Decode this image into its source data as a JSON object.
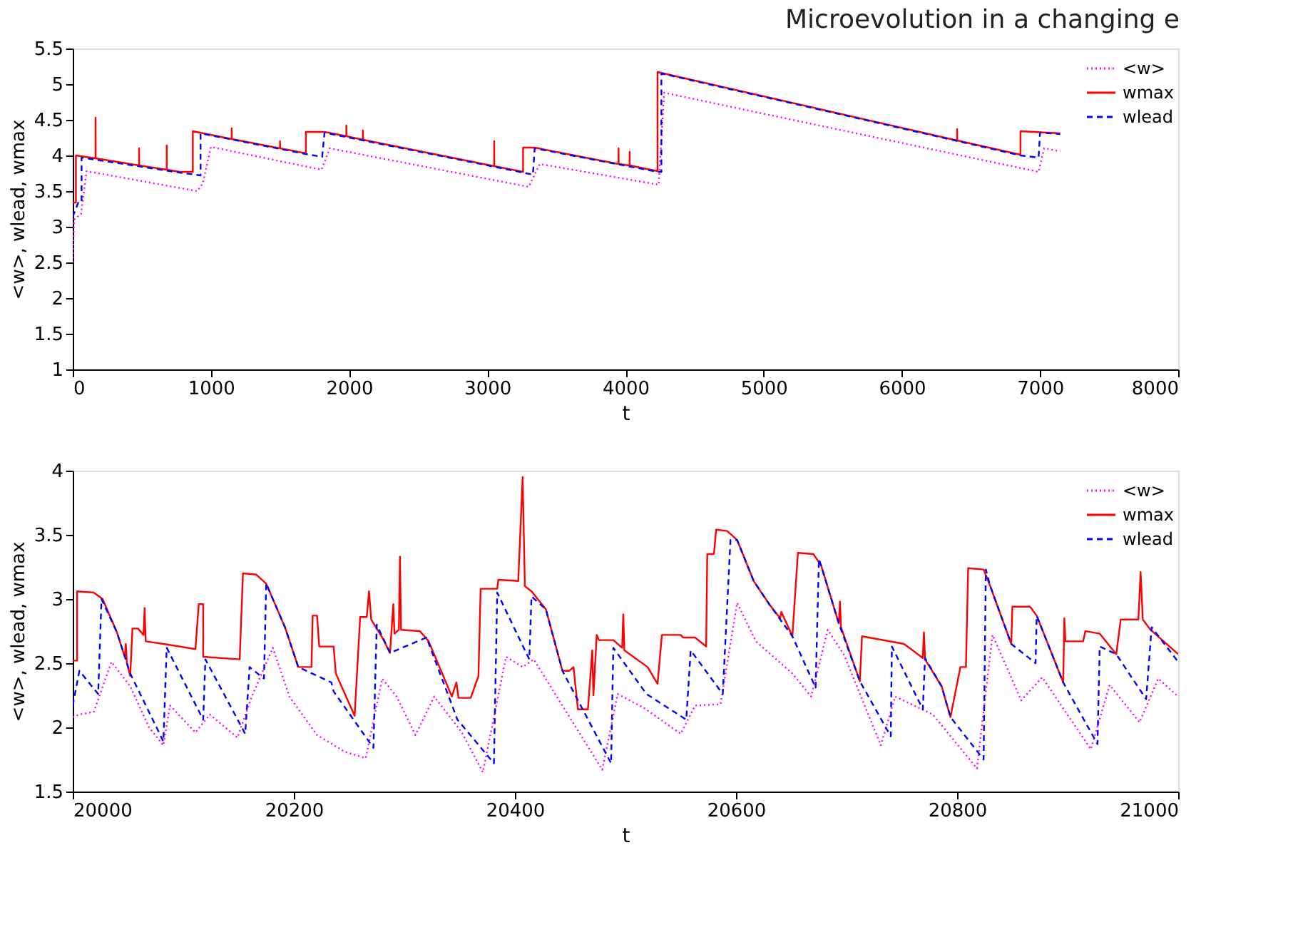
{
  "chart_data": [
    {
      "type": "line",
      "title": "Microevolution in a changing e",
      "xlabel": "t",
      "ylabel": "<w>, wlead, wmax",
      "xlim": [
        0,
        8000
      ],
      "xticks": [
        0,
        1000,
        2000,
        3000,
        4000,
        5000,
        6000,
        7000,
        8000
      ],
      "ylim": [
        1,
        5.5
      ],
      "yticks": [
        1,
        1.5,
        2,
        2.5,
        3,
        3.5,
        4,
        4.5,
        5,
        5.5
      ],
      "grid": false,
      "legend": "top right",
      "series": [
        {
          "name": "<w>",
          "color": "#ff00ff",
          "line_style": "dotted",
          "x": [
            0,
            10,
            60,
            100,
            900,
            940,
            1000,
            1800,
            1860,
            3300,
            3380,
            4240,
            4280,
            6990,
            7030,
            7146
          ],
          "values": [
            2.5,
            3.1,
            3.18,
            3.78,
            3.5,
            3.6,
            4.12,
            3.8,
            4.1,
            3.56,
            3.88,
            3.59,
            4.88,
            3.77,
            4.1,
            4.06
          ]
        },
        {
          "name": "wmax",
          "color": "#ff0000",
          "line_style": "solid",
          "x": [
            0,
            23,
            23,
            165,
            165,
            166,
            480,
            480,
            481,
            680,
            680,
            681,
            774,
            869,
            869,
            1150,
            1150,
            1151,
            1500,
            1500,
            1501,
            1687,
            1687,
            1822,
            1980,
            1980,
            1981,
            2100,
            2100,
            2101,
            3050,
            3050,
            3051,
            3259,
            3259,
            3343,
            3950,
            3950,
            3951,
            4030,
            4030,
            4031,
            4232,
            4232,
            6400,
            6400,
            6401,
            6859,
            6859,
            7146
          ],
          "values": [
            3.34,
            3.34,
            4.0,
            3.96,
            4.53,
            3.96,
            3.86,
            4.1,
            3.86,
            3.8,
            4.14,
            3.8,
            3.77,
            3.77,
            4.34,
            4.23,
            4.38,
            4.23,
            4.1,
            4.2,
            4.1,
            4.03,
            4.33,
            4.33,
            4.27,
            4.42,
            4.27,
            4.22,
            4.35,
            4.22,
            3.85,
            4.2,
            3.85,
            3.77,
            4.11,
            4.11,
            3.88,
            4.1,
            3.88,
            3.86,
            4.05,
            3.86,
            3.78,
            5.17,
            4.21,
            4.37,
            4.21,
            4.01,
            4.34,
            4.31
          ]
        },
        {
          "name": "wlead",
          "color": "#0000ff",
          "line_style": "dashed",
          "x": [
            0,
            40,
            64,
            64,
            774,
            925,
            925,
            1687,
            1805,
            1822,
            3259,
            3330,
            3343,
            4232,
            4260,
            4260,
            6859,
            6990,
            7000,
            7146
          ],
          "values": [
            3.14,
            3.34,
            3.34,
            3.97,
            3.76,
            3.72,
            4.31,
            4.02,
            3.98,
            4.32,
            3.76,
            3.73,
            4.1,
            3.77,
            3.77,
            5.15,
            4.0,
            3.97,
            4.32,
            4.3
          ]
        }
      ]
    },
    {
      "type": "line",
      "xlabel": "t",
      "ylabel": "<w>, wlead, wmax",
      "xlim": [
        20000,
        21000
      ],
      "xticks": [
        20000,
        20200,
        20400,
        20600,
        20800,
        21000
      ],
      "ylim": [
        1.5,
        4
      ],
      "yticks": [
        1.5,
        2,
        2.5,
        3,
        3.5,
        4
      ],
      "grid": false,
      "legend": "top right",
      "series": [
        {
          "name": "<w>",
          "color": "#ff00ff",
          "line_style": "dotted",
          "x": [
            20000,
            20006,
            20019,
            20035,
            20052,
            20069,
            20082,
            20088,
            20111,
            20124,
            20149,
            20162,
            20181,
            20196,
            20221,
            20246,
            20265,
            20280,
            20293,
            20310,
            20327,
            20352,
            20371,
            20392,
            20407,
            20417,
            20440,
            20479,
            20493,
            20517,
            20550,
            20563,
            20586,
            20601,
            20618,
            20651,
            20668,
            20683,
            20698,
            20731,
            20744,
            20778,
            20818,
            20832,
            20858,
            20877,
            20921,
            20938,
            20965,
            20982,
            21000
          ],
          "values": [
            2.08,
            2.1,
            2.12,
            2.51,
            2.32,
            2.0,
            1.86,
            2.17,
            1.96,
            2.1,
            1.92,
            2.24,
            2.62,
            2.24,
            1.94,
            1.81,
            1.76,
            2.38,
            2.24,
            1.94,
            2.24,
            1.96,
            1.65,
            2.55,
            2.47,
            2.53,
            2.21,
            1.67,
            2.26,
            2.15,
            1.95,
            2.17,
            2.18,
            2.97,
            2.67,
            2.42,
            2.24,
            2.76,
            2.56,
            1.86,
            2.24,
            2.1,
            1.68,
            2.72,
            2.21,
            2.39,
            1.83,
            2.33,
            2.04,
            2.38,
            2.24
          ]
        },
        {
          "name": "wmax",
          "color": "#ff0000",
          "line_style": "solid",
          "x": [
            20000,
            20004,
            20004,
            20019,
            20027,
            20040,
            20047,
            20048,
            20049,
            20052,
            20054,
            20059,
            20064,
            20065,
            20066,
            20082,
            20111,
            20114,
            20118,
            20118,
            20151,
            20154,
            20166,
            20175,
            20192,
            20204,
            20216,
            20217,
            20221,
            20223,
            20236,
            20238,
            20255,
            20260,
            20266,
            20268,
            20270,
            20280,
            20287,
            20290,
            20291,
            20295,
            20296,
            20297,
            20314,
            20322,
            20343,
            20347,
            20349,
            20360,
            20367,
            20369,
            20384,
            20385,
            20403,
            20407,
            20409,
            20415,
            20428,
            20443,
            20449,
            20453,
            20457,
            20466,
            20470,
            20471,
            20474,
            20476,
            20489,
            20497,
            20498,
            20499,
            20520,
            20529,
            20533,
            20550,
            20552,
            20563,
            20573,
            20574,
            20580,
            20582,
            20592,
            20601,
            20616,
            20630,
            20640,
            20641,
            20651,
            20656,
            20670,
            20677,
            20693,
            20694,
            20695,
            20712,
            20714,
            20752,
            20769,
            20770,
            20771,
            20786,
            20794,
            20803,
            20808,
            20810,
            20824,
            20830,
            20849,
            20850,
            20866,
            20872,
            20896,
            20897,
            20898,
            20914,
            20916,
            20929,
            20944,
            20948,
            20964,
            20966,
            20968,
            20975,
            21000
          ],
          "values": [
            2.52,
            2.52,
            3.06,
            3.05,
            3.0,
            2.74,
            2.55,
            2.65,
            2.5,
            2.4,
            2.77,
            2.77,
            2.72,
            2.93,
            2.67,
            2.65,
            2.61,
            2.96,
            2.96,
            2.55,
            2.53,
            3.2,
            3.19,
            3.12,
            2.78,
            2.47,
            2.47,
            2.87,
            2.87,
            2.63,
            2.63,
            2.42,
            2.09,
            2.86,
            2.86,
            3.06,
            2.84,
            2.7,
            2.58,
            2.96,
            2.73,
            2.76,
            3.33,
            2.76,
            2.75,
            2.67,
            2.24,
            2.35,
            2.23,
            2.23,
            2.4,
            3.08,
            3.08,
            3.15,
            3.14,
            3.95,
            3.1,
            3.06,
            2.92,
            2.44,
            2.44,
            2.47,
            2.14,
            2.14,
            2.6,
            2.25,
            2.72,
            2.68,
            2.68,
            2.62,
            2.88,
            2.6,
            2.47,
            2.34,
            2.72,
            2.72,
            2.7,
            2.7,
            2.63,
            3.35,
            3.35,
            3.54,
            3.53,
            3.46,
            3.14,
            2.96,
            2.85,
            2.9,
            2.71,
            3.36,
            3.35,
            3.26,
            2.81,
            2.98,
            2.78,
            2.36,
            2.71,
            2.65,
            2.54,
            2.74,
            2.53,
            2.32,
            2.08,
            2.47,
            2.47,
            3.24,
            3.23,
            3.1,
            2.65,
            2.94,
            2.94,
            2.87,
            2.35,
            2.85,
            2.67,
            2.67,
            2.75,
            2.73,
            2.57,
            2.84,
            2.84,
            3.21,
            2.84,
            2.76,
            2.57
          ]
        },
        {
          "name": "wlead",
          "color": "#0000ff",
          "line_style": "dashed",
          "x": [
            20000,
            20006,
            20023,
            20026,
            20040,
            20052,
            20082,
            20085,
            20118,
            20120,
            20156,
            20160,
            20173,
            20175,
            20192,
            20204,
            20234,
            20236,
            20272,
            20275,
            20287,
            20320,
            20348,
            20381,
            20384,
            20413,
            20415,
            20428,
            20443,
            20487,
            20489,
            20519,
            20555,
            20559,
            20588,
            20595,
            20601,
            20616,
            20630,
            20651,
            20672,
            20675,
            20677,
            20693,
            20712,
            20740,
            20741,
            20769,
            20771,
            20786,
            20794,
            20824,
            20826,
            20830,
            20849,
            20871,
            20872,
            20896,
            20927,
            20929,
            20944,
            20971,
            20976,
            21000
          ],
          "values": [
            2.17,
            2.44,
            2.26,
            3.0,
            2.74,
            2.42,
            1.89,
            2.62,
            2.06,
            2.53,
            1.95,
            2.47,
            2.38,
            3.12,
            2.78,
            2.47,
            2.35,
            2.28,
            1.84,
            2.8,
            2.58,
            2.7,
            2.06,
            1.72,
            3.05,
            2.53,
            3.02,
            2.92,
            2.44,
            1.72,
            2.62,
            2.26,
            2.06,
            2.6,
            2.26,
            3.46,
            3.46,
            3.14,
            2.96,
            2.71,
            2.31,
            3.31,
            3.26,
            2.81,
            2.36,
            1.93,
            2.63,
            2.14,
            2.54,
            2.32,
            2.08,
            1.75,
            3.23,
            3.1,
            2.65,
            2.5,
            2.87,
            2.35,
            1.87,
            2.63,
            2.57,
            2.22,
            2.78,
            2.51
          ]
        }
      ]
    }
  ]
}
